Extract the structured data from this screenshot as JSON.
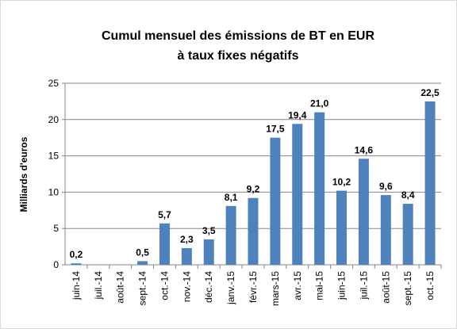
{
  "chart_data": {
    "type": "bar",
    "title_lines": [
      "Cumul mensuel des émissions de BT en EUR",
      "à taux fixes négatifs"
    ],
    "y_label": "Milliards d'euros",
    "categories": [
      "juin-14",
      "juil.-14",
      "août-14",
      "sept.-14",
      "oct.-14",
      "nov.-14",
      "déc.-14",
      "janv.-15",
      "févr.-15",
      "mars-15",
      "avr.-15",
      "mai-15",
      "juin-15",
      "juil.-15",
      "août-15",
      "sept.-15",
      "oct.-15"
    ],
    "values": [
      0.2,
      null,
      null,
      0.5,
      5.7,
      2.3,
      3.5,
      8.1,
      9.2,
      17.5,
      19.4,
      21.0,
      10.2,
      14.6,
      9.6,
      8.4,
      22.5
    ],
    "value_labels": [
      "0,2",
      null,
      null,
      "0,5",
      "5,7",
      "2,3",
      "3,5",
      "8,1",
      "9,2",
      "17,5",
      "19,4",
      "21,0",
      "10,2",
      "14,6",
      "9,6",
      "8,4",
      "22,5"
    ],
    "color": "#4f81bd",
    "ylim": [
      0,
      25
    ],
    "yticks": [
      0,
      5,
      10,
      15,
      20,
      25
    ],
    "grid": true
  }
}
